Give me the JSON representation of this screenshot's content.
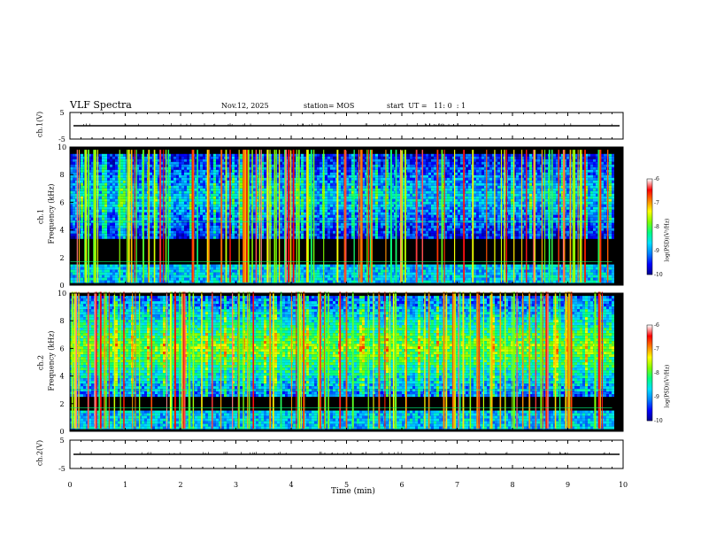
{
  "header": {
    "title": "VLF Spectra",
    "date": "Nov.12, 2025",
    "station": "station= MOS",
    "start_ut": "start  UT =   11: 0  : 1"
  },
  "colors": {
    "background": "#000000",
    "axis": "#000000",
    "colorbar_stops": [
      "#00008b",
      "#0000ff",
      "#0080ff",
      "#00e0ff",
      "#00ff80",
      "#80ff00",
      "#ffff00",
      "#ff8000",
      "#ff0000",
      "#ffffff"
    ]
  },
  "chart_data": [
    {
      "type": "line",
      "panel": "ch1-waveform",
      "ylabel": "ch.1(V)",
      "ylim": [
        -5,
        5
      ],
      "yticks": [
        5,
        -5
      ],
      "level": 0,
      "xlim": [
        0,
        10
      ]
    },
    {
      "type": "heatmap",
      "panel": "ch1-spectrogram",
      "ylabel": "Frequency (kHz)",
      "channel_label": "ch.1",
      "ylim": [
        0,
        10
      ],
      "yticks": [
        0,
        2,
        4,
        6,
        8,
        10
      ],
      "xlim": [
        0,
        10
      ],
      "data_end_min": 9.8,
      "line_freqs_khz": [
        4.6,
        1.7
      ],
      "dense_band_khz": [
        3.5,
        9.5
      ],
      "lower_band_khz": [
        0.3,
        1.5
      ],
      "background_intensity": 0.32,
      "colorbar": {
        "label": "log(PSD)(V²/Hz)",
        "range": [
          -10,
          -6
        ],
        "ticks": [
          -6,
          -7,
          -8,
          -9,
          -10
        ]
      }
    },
    {
      "type": "heatmap",
      "panel": "ch2-spectrogram",
      "ylabel": "Frequency (kHz)",
      "channel_label": "ch.2",
      "ylim": [
        0,
        10
      ],
      "yticks": [
        0,
        2,
        4,
        6,
        8,
        10
      ],
      "xlim": [
        0,
        10
      ],
      "data_end_min": 9.8,
      "line_freqs_khz": [
        3.0,
        1.7
      ],
      "dense_band_khz": [
        2.5,
        9.8
      ],
      "lower_band_khz": [
        0.3,
        1.5
      ],
      "background_intensity": 0.55,
      "colorbar": {
        "label": "log(PSD)(V²/Hz)",
        "range": [
          -10,
          -6
        ],
        "ticks": [
          -6,
          -7,
          -8,
          -9,
          -10
        ]
      }
    },
    {
      "type": "line",
      "panel": "ch2-waveform",
      "ylabel": "ch.2(V)",
      "ylim": [
        -5,
        5
      ],
      "yticks": [
        5,
        -5
      ],
      "level": 0,
      "xlim": [
        0,
        10
      ]
    }
  ],
  "xaxis": {
    "label": "Time (min)",
    "ticks": [
      0,
      1,
      2,
      3,
      4,
      5,
      6,
      7,
      8,
      9,
      10
    ]
  }
}
